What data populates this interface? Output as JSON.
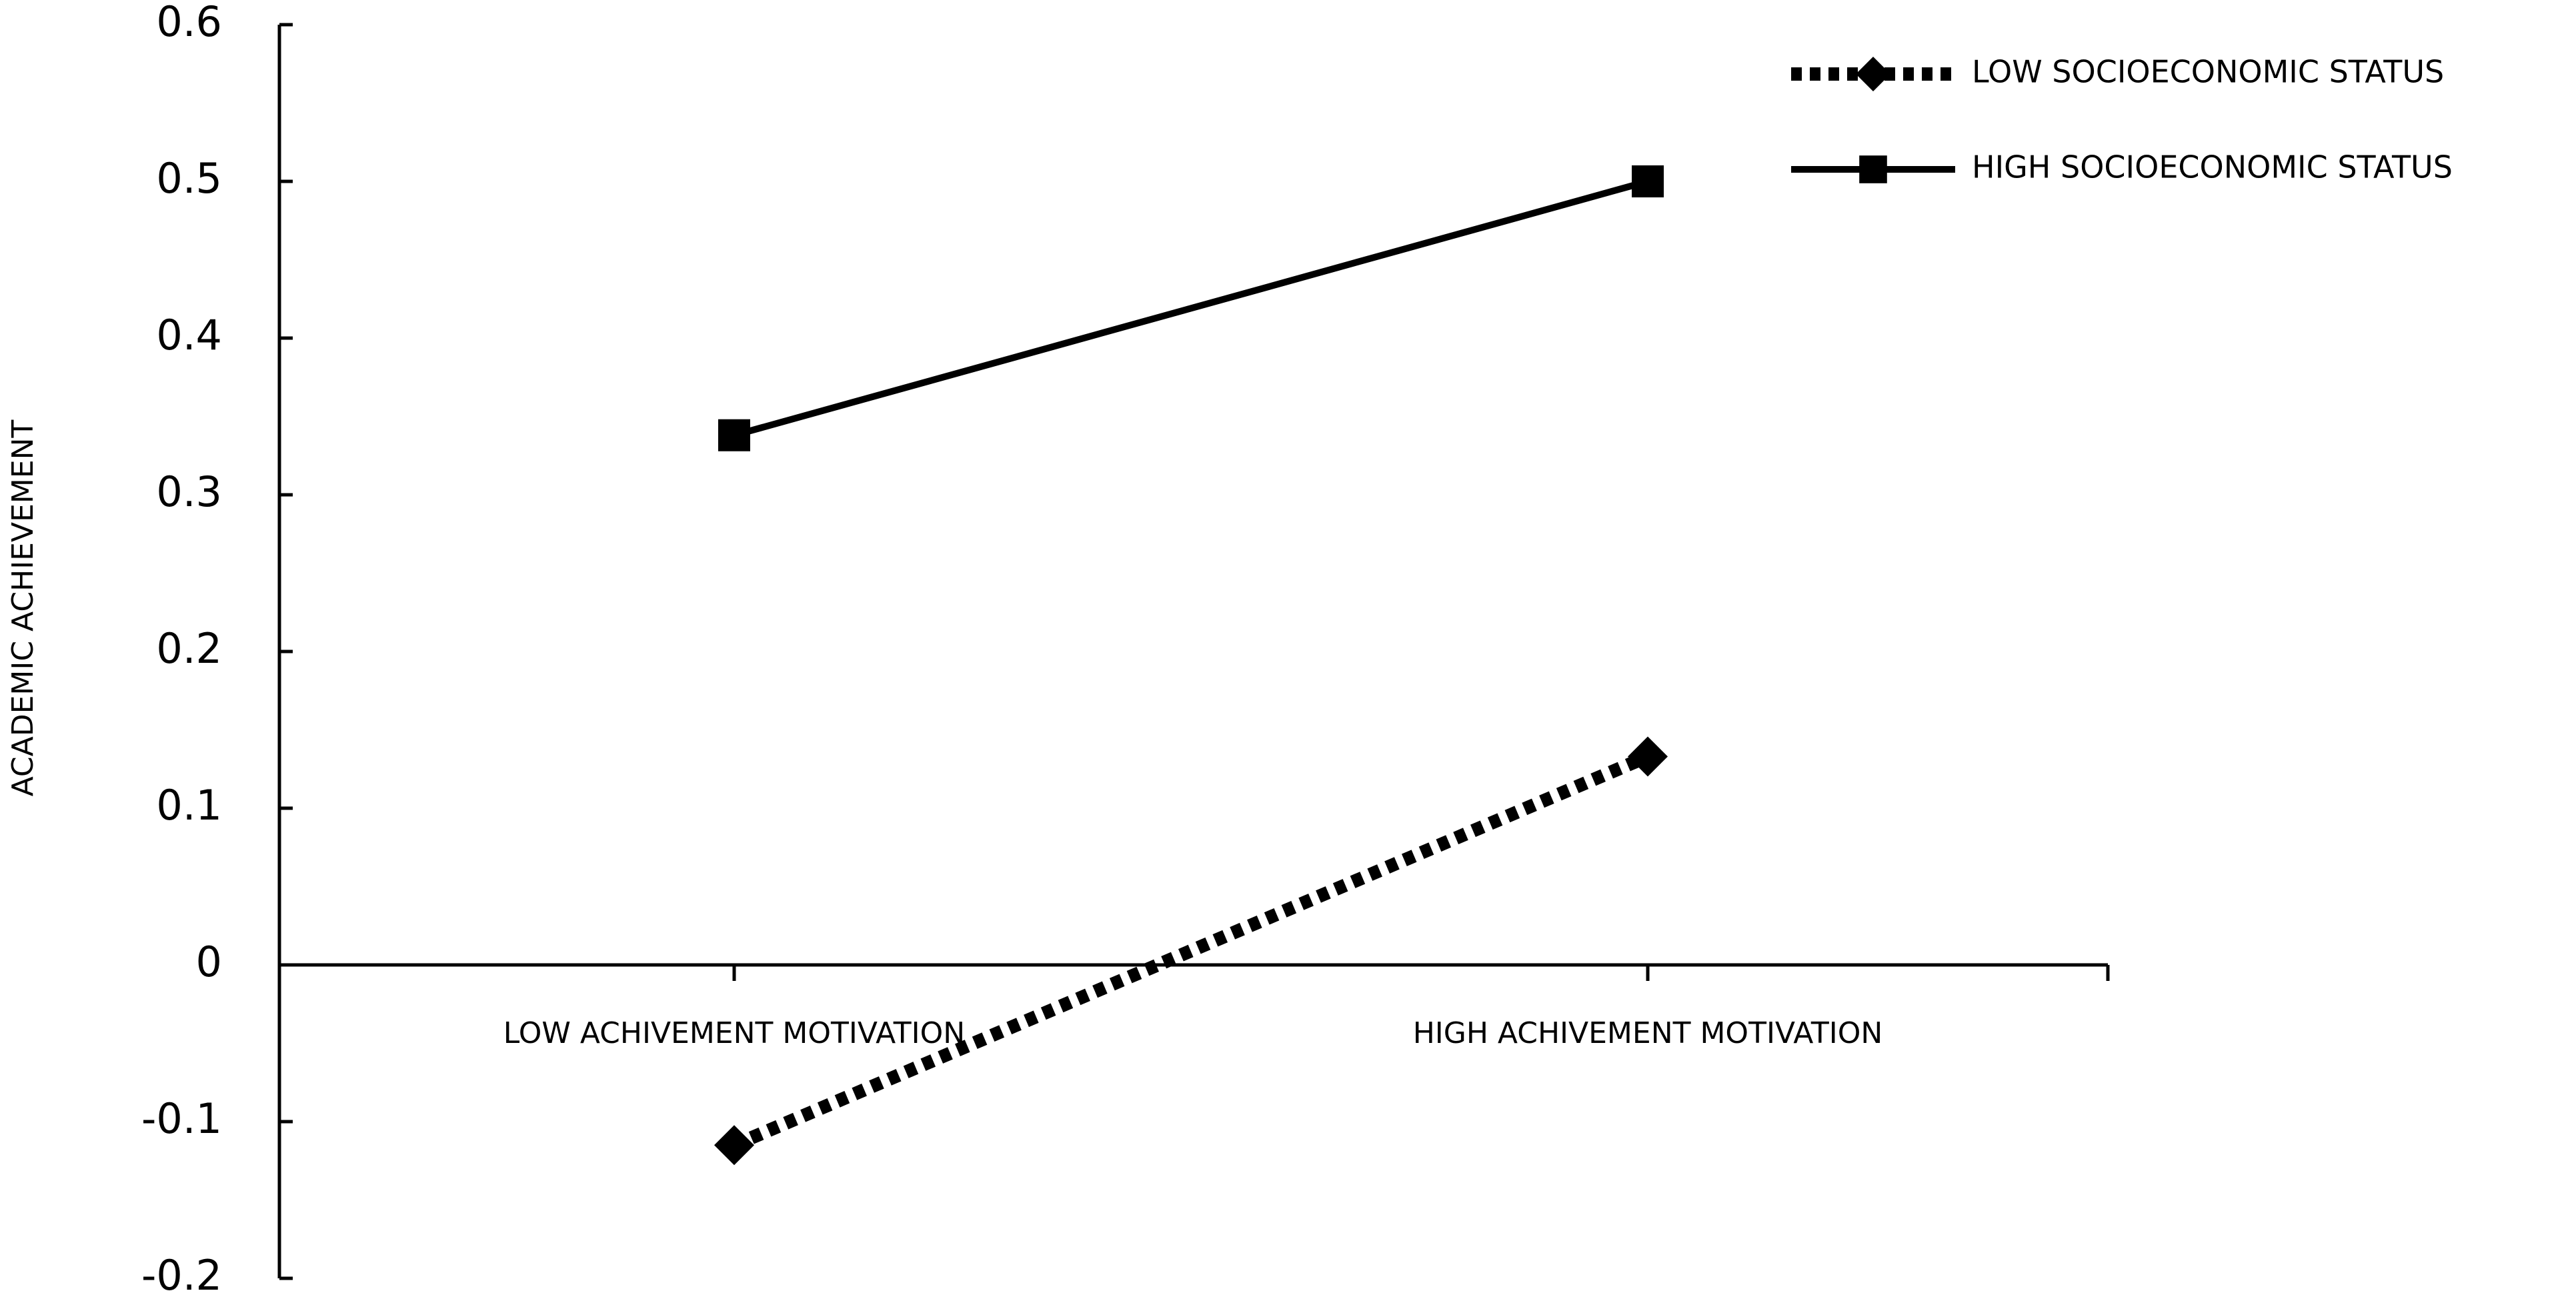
{
  "chart_data": {
    "type": "line",
    "y_label": "ACADEMIC   ACHIEVEMENT",
    "categories": [
      "LOW ACHIVEMENT  MOTIVATION",
      "HIGH ACHIVEMENT  MOTIVATION"
    ],
    "series": [
      {
        "name": "LOW SOCIOECONOMIC STATUS",
        "color": "#000000",
        "line_style": "dotted",
        "marker": "diamond",
        "values": [
          -0.115,
          0.133
        ]
      },
      {
        "name": "HIGH SOCIOECONOMIC STATUS",
        "color": "#000000",
        "line_style": "solid",
        "marker": "square",
        "values": [
          0.338,
          0.5
        ]
      }
    ],
    "ylim": [
      -0.2,
      0.6
    ],
    "yticks": [
      -0.2,
      -0.1,
      0,
      0.1,
      0.2,
      0.3,
      0.4,
      0.5,
      0.6
    ],
    "grid": false,
    "legend": "top-right"
  }
}
